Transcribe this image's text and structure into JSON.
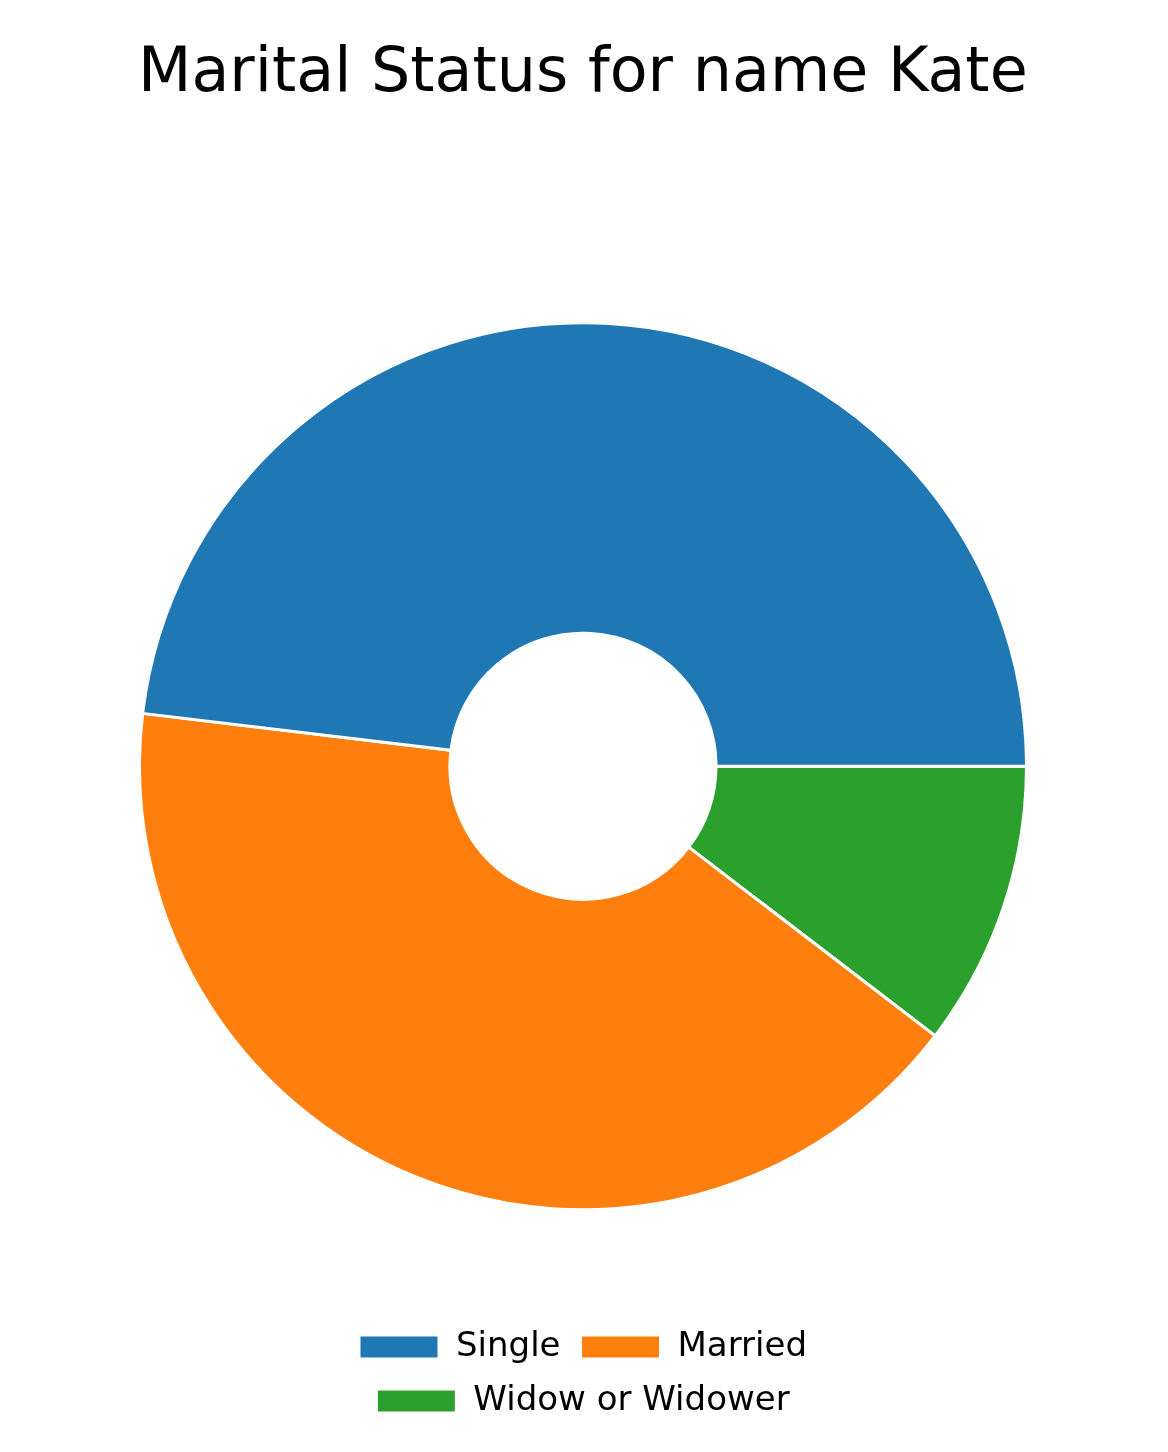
{
  "chart_data": {
    "type": "donut",
    "title": "Marital Status for name Kate",
    "categories": [
      "Single",
      "Married",
      "Widow or Widower"
    ],
    "values": [
      48.1,
      41.5,
      10.4
    ],
    "colors": [
      "#1f77b4",
      "#ff7f0e",
      "#2ca02c"
    ],
    "legend": "bottom"
  }
}
